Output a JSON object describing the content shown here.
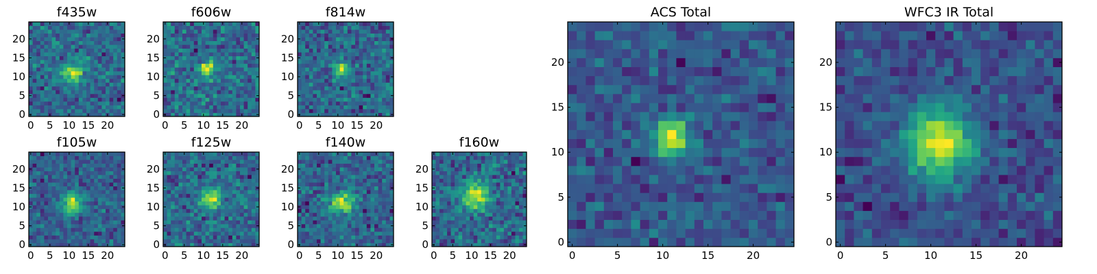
{
  "figure_type": "grid of image-stamp heatmaps",
  "colormap": "viridis",
  "chart_data": [
    {
      "type": "heatmap",
      "id": "f435w",
      "title": "f435w",
      "grid_size": 25,
      "xlim": [
        -0.5,
        24.5
      ],
      "ylim": [
        -0.5,
        24.5
      ],
      "xticks": [
        0,
        5,
        10,
        15,
        20
      ],
      "yticks": [
        0,
        5,
        10,
        15,
        20
      ],
      "xtick_labels": [
        "0",
        "5",
        "10",
        "15",
        "20"
      ],
      "ytick_labels": [
        "0",
        "5",
        "10",
        "15",
        "20"
      ],
      "peak": {
        "x": 11,
        "y": 11,
        "sigma": 2.0
      },
      "noise": 0.55,
      "seed": 11
    },
    {
      "type": "heatmap",
      "id": "f606w",
      "title": "f606w",
      "grid_size": 25,
      "xlim": [
        -0.5,
        24.5
      ],
      "ylim": [
        -0.5,
        24.5
      ],
      "xticks": [
        0,
        5,
        10,
        15,
        20
      ],
      "yticks": [
        0,
        5,
        10,
        15,
        20
      ],
      "xtick_labels": [
        "0",
        "5",
        "10",
        "15",
        "20"
      ],
      "ytick_labels": [
        "0",
        "5",
        "10",
        "15",
        "20"
      ],
      "peak": {
        "x": 11,
        "y": 12,
        "sigma": 1.2
      },
      "noise": 0.5,
      "seed": 23
    },
    {
      "type": "heatmap",
      "id": "f814w",
      "title": "f814w",
      "grid_size": 25,
      "xlim": [
        -0.5,
        24.5
      ],
      "ylim": [
        -0.5,
        24.5
      ],
      "xticks": [
        0,
        5,
        10,
        15,
        20
      ],
      "yticks": [
        0,
        5,
        10,
        15,
        20
      ],
      "xtick_labels": [
        "0",
        "5",
        "10",
        "15",
        "20"
      ],
      "ytick_labels": [
        "0",
        "5",
        "10",
        "15",
        "20"
      ],
      "peak": {
        "x": 11,
        "y": 12,
        "sigma": 1.2
      },
      "noise": 0.5,
      "seed": 37
    },
    {
      "type": "heatmap",
      "id": "f105w",
      "title": "f105w",
      "grid_size": 25,
      "xlim": [
        -0.5,
        24.5
      ],
      "ylim": [
        -0.5,
        24.5
      ],
      "xticks": [
        0,
        5,
        10,
        15,
        20
      ],
      "yticks": [
        0,
        5,
        10,
        15,
        20
      ],
      "xtick_labels": [
        "0",
        "5",
        "10",
        "15",
        "20"
      ],
      "ytick_labels": [
        "0",
        "5",
        "10",
        "15",
        "20"
      ],
      "peak": {
        "x": 11,
        "y": 11,
        "sigma": 2.0
      },
      "noise": 0.5,
      "seed": 41
    },
    {
      "type": "heatmap",
      "id": "f125w",
      "title": "f125w",
      "grid_size": 25,
      "xlim": [
        -0.5,
        24.5
      ],
      "ylim": [
        -0.5,
        24.5
      ],
      "xticks": [
        0,
        5,
        10,
        15,
        20
      ],
      "yticks": [
        0,
        5,
        10,
        15,
        20
      ],
      "xtick_labels": [
        "0",
        "5",
        "10",
        "15",
        "20"
      ],
      "ytick_labels": [
        "0",
        "5",
        "10",
        "15",
        "20"
      ],
      "peak": {
        "x": 12,
        "y": 12,
        "sigma": 1.8
      },
      "noise": 0.55,
      "seed": 53
    },
    {
      "type": "heatmap",
      "id": "f140w",
      "title": "f140w",
      "grid_size": 25,
      "xlim": [
        -0.5,
        24.5
      ],
      "ylim": [
        -0.5,
        24.5
      ],
      "xticks": [
        0,
        5,
        10,
        15,
        20
      ],
      "yticks": [
        0,
        5,
        10,
        15,
        20
      ],
      "xtick_labels": [
        "0",
        "5",
        "10",
        "15",
        "20"
      ],
      "ytick_labels": [
        "0",
        "5",
        "10",
        "15",
        "20"
      ],
      "peak": {
        "x": 11,
        "y": 11,
        "sigma": 2.2
      },
      "noise": 0.55,
      "seed": 67
    },
    {
      "type": "heatmap",
      "id": "f160w",
      "title": "f160w",
      "grid_size": 25,
      "xlim": [
        -0.5,
        24.5
      ],
      "ylim": [
        -0.5,
        24.5
      ],
      "xticks": [
        0,
        5,
        10,
        15,
        20
      ],
      "yticks": [
        0,
        5,
        10,
        15,
        20
      ],
      "xtick_labels": [
        "0",
        "5",
        "10",
        "15",
        "20"
      ],
      "ytick_labels": [
        "0",
        "5",
        "10",
        "15",
        "20"
      ],
      "peak": {
        "x": 11,
        "y": 13,
        "sigma": 2.5
      },
      "noise": 0.55,
      "seed": 79
    },
    {
      "type": "heatmap",
      "id": "acs_total",
      "title": "ACS Total",
      "grid_size": 25,
      "xlim": [
        -0.5,
        24.5
      ],
      "ylim": [
        -0.5,
        24.5
      ],
      "xticks": [
        0,
        5,
        10,
        15,
        20
      ],
      "yticks": [
        0,
        5,
        10,
        15,
        20
      ],
      "xtick_labels": [
        "0",
        "5",
        "10",
        "15",
        "20"
      ],
      "ytick_labels": [
        "0",
        "5",
        "10",
        "15",
        "20"
      ],
      "peak": {
        "x": 11,
        "y": 11.5,
        "sigma": 1.3
      },
      "noise": 0.3,
      "seed": 97
    },
    {
      "type": "heatmap",
      "id": "wfc3_ir_total",
      "title": "WFC3 IR Total",
      "grid_size": 25,
      "xlim": [
        -0.5,
        24.5
      ],
      "ylim": [
        -0.5,
        24.5
      ],
      "xticks": [
        0,
        5,
        10,
        15,
        20
      ],
      "yticks": [
        0,
        5,
        10,
        15,
        20
      ],
      "xtick_labels": [
        "0",
        "5",
        "10",
        "15",
        "20"
      ],
      "ytick_labels": [
        "0",
        "5",
        "10",
        "15",
        "20"
      ],
      "peak": {
        "x": 11,
        "y": 11,
        "sigma": 2.5
      },
      "noise": 0.3,
      "seed": 113
    }
  ]
}
